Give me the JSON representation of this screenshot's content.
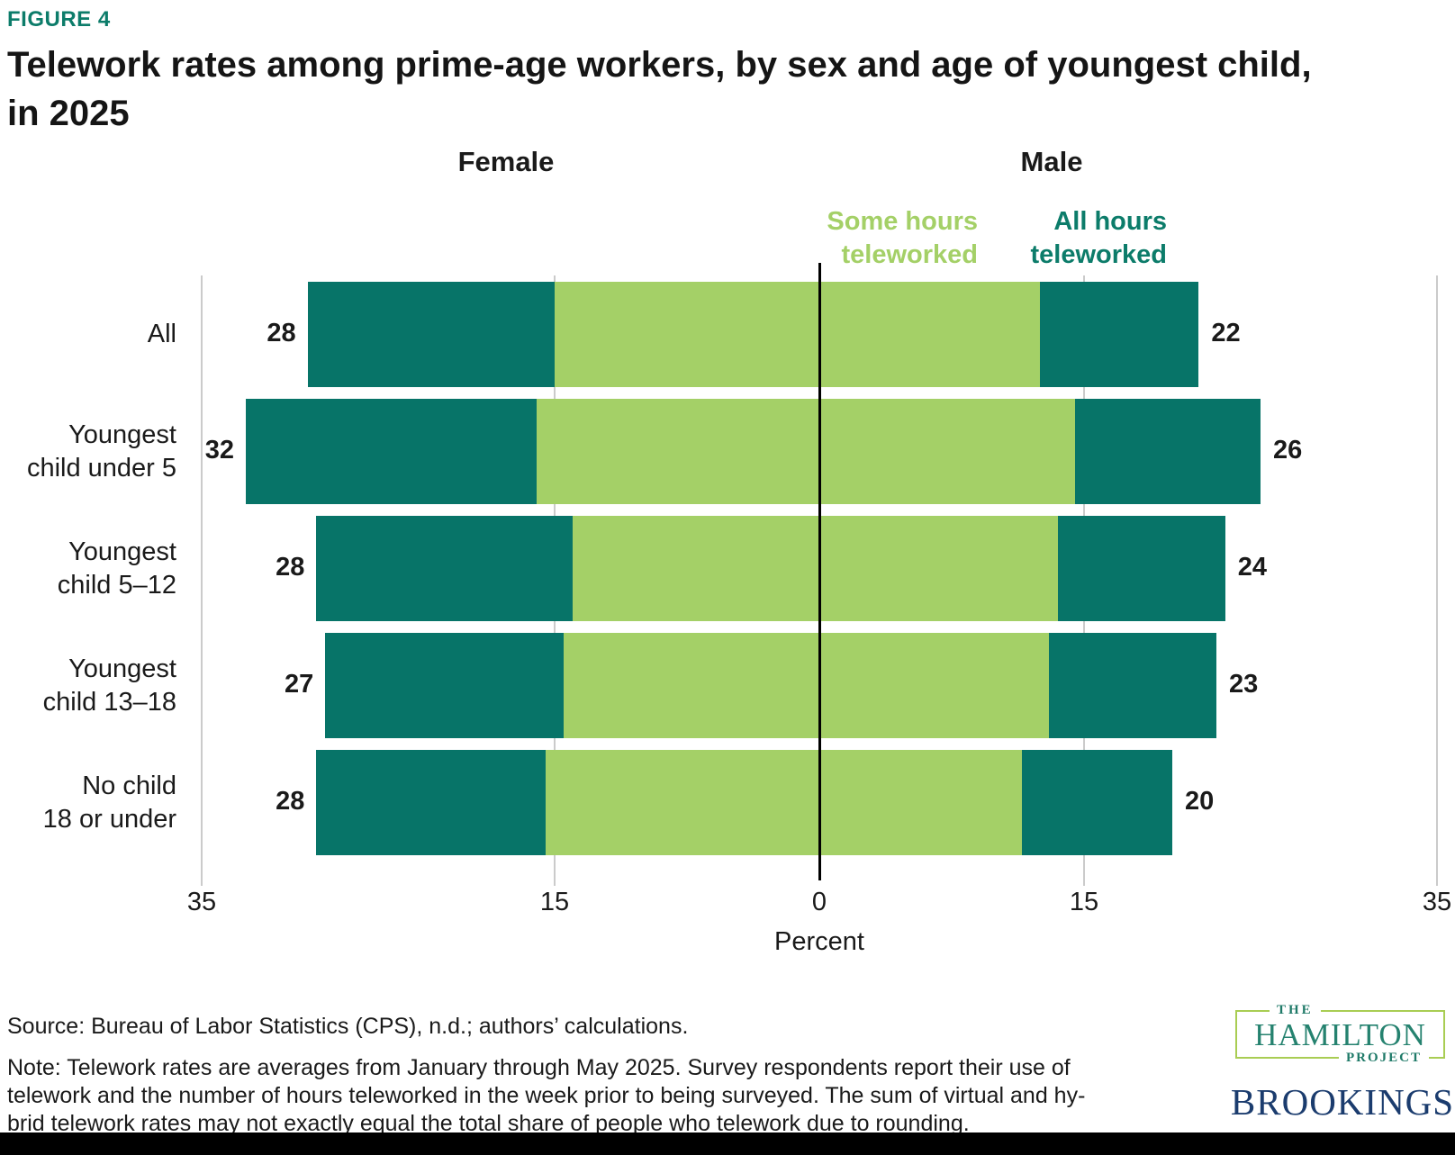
{
  "header": {
    "figure_label": "FIGURE 4",
    "title_lines": [
      "Telework rates among prime-age workers, by sex and age of youngest child,",
      "in 2025"
    ]
  },
  "colors": {
    "some_hours": "#a4d067",
    "all_hours": "#077468",
    "figure_label_teal": "#0c7c6a",
    "gridline_gray": "#cbcbcb",
    "zero_line_black": "#000000",
    "hamilton_green": "#a9cd53",
    "hamilton_teal": "#25826f",
    "brookings_navy": "#1b3c6e"
  },
  "chart_data": {
    "type": "bar",
    "orientation": "diverging-horizontal-stacked",
    "unit": "percent",
    "group_headers": [
      "Female",
      "Male"
    ],
    "legend": [
      {
        "label": "Some hours teleworked",
        "label_lines": [
          "Some hours",
          "teleworked"
        ],
        "color": "#a4d067"
      },
      {
        "label": "All hours teleworked",
        "label_lines": [
          "All hours",
          "teleworked"
        ],
        "color": "#077468"
      }
    ],
    "axis": {
      "xlabel": "Percent",
      "max_each_side": 35,
      "grid": true,
      "ticks": [
        {
          "label": "35",
          "value": -35
        },
        {
          "label": "15",
          "value": -15
        },
        {
          "label": "0",
          "value": 0
        },
        {
          "label": "15",
          "value": 15
        },
        {
          "label": "35",
          "value": 35
        }
      ]
    },
    "categories": [
      "All",
      "Youngest child under 5",
      "Youngest child 5–12",
      "Youngest child 13–18",
      "No child 18 or under"
    ],
    "rows": [
      {
        "label_lines": [
          "All"
        ],
        "female": {
          "some_hours": 15,
          "all_hours": 14,
          "total_label": "28"
        },
        "male": {
          "some_hours": 12.5,
          "all_hours": 9,
          "total_label": "22"
        }
      },
      {
        "label_lines": [
          "Youngest",
          "child under 5"
        ],
        "female": {
          "some_hours": 16,
          "all_hours": 16.5,
          "total_label": "32"
        },
        "male": {
          "some_hours": 14.5,
          "all_hours": 10.5,
          "total_label": "26"
        }
      },
      {
        "label_lines": [
          "Youngest",
          "child 5–12"
        ],
        "female": {
          "some_hours": 14,
          "all_hours": 14.5,
          "total_label": "28"
        },
        "male": {
          "some_hours": 13.5,
          "all_hours": 9.5,
          "total_label": "24"
        }
      },
      {
        "label_lines": [
          "Youngest",
          "child 13–18"
        ],
        "female": {
          "some_hours": 14.5,
          "all_hours": 13.5,
          "total_label": "27"
        },
        "male": {
          "some_hours": 13,
          "all_hours": 9.5,
          "total_label": "23"
        }
      },
      {
        "label_lines": [
          "No child",
          "18 or under"
        ],
        "female": {
          "some_hours": 15.5,
          "all_hours": 13,
          "total_label": "28"
        },
        "male": {
          "some_hours": 11.5,
          "all_hours": 8.5,
          "total_label": "20"
        }
      }
    ]
  },
  "footer": {
    "source": "Source: Bureau of Labor Statistics (CPS), n.d.; authors’ calculations.",
    "note_lines": [
      "Note: Telework rates are averages from January through May 2025. Survey respondents report their use of",
      "telework and the number of hours teleworked in the week prior to being surveyed. The sum of virtual and hy-",
      "brid telework rates may not exactly equal the total share of people who telework due to rounding."
    ],
    "logos": {
      "hamilton_the": "THE",
      "hamilton_name": "HAMILTON",
      "hamilton_project": "PROJECT",
      "brookings": "BROOKINGS"
    }
  }
}
